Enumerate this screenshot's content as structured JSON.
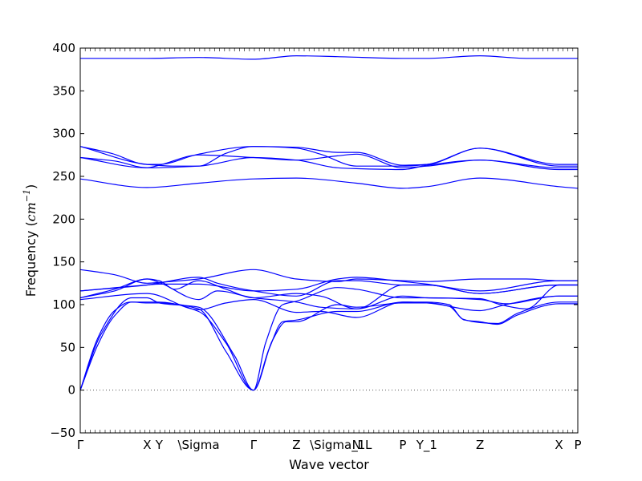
{
  "chart_data": {
    "type": "line",
    "title": "",
    "xlabel": "Wave vector",
    "ylabel_main": "Frequency (",
    "ylabel_unit": "cm",
    "ylabel_exp": "−1",
    "ylabel_close": ")",
    "ylim": [
      -50,
      400
    ],
    "yticks": [
      -50,
      0,
      50,
      100,
      150,
      200,
      250,
      300,
      350,
      400
    ],
    "xlim": [
      0,
      2.9
    ],
    "grid": false,
    "line_color": "#0000ff",
    "zero_line_color": "#555555",
    "xticks": [
      {
        "pos": 0.0,
        "label": "Γ"
      },
      {
        "pos": 0.39,
        "label": "X"
      },
      {
        "pos": 0.46,
        "label": "Y"
      },
      {
        "pos": 0.69,
        "label": "\\Sigma"
      },
      {
        "pos": 1.01,
        "label": "Γ"
      },
      {
        "pos": 1.26,
        "label": "Z"
      },
      {
        "pos": 1.5,
        "label": "\\Sigma_1"
      },
      {
        "pos": 1.61,
        "label": "N"
      },
      {
        "pos": 1.68,
        "label": "L"
      },
      {
        "pos": 1.88,
        "label": "P"
      },
      {
        "pos": 2.02,
        "label": "Y_1"
      },
      {
        "pos": 2.33,
        "label": "Z"
      },
      {
        "pos": 2.79,
        "label": "X"
      },
      {
        "pos": 2.9,
        "label": "P"
      }
    ],
    "series": [
      {
        "values": [
          [
            0,
            388
          ],
          [
            0.39,
            388
          ],
          [
            0.69,
            389
          ],
          [
            1.01,
            387
          ],
          [
            1.26,
            391
          ],
          [
            1.5,
            390
          ],
          [
            1.88,
            388
          ],
          [
            2.02,
            388
          ],
          [
            2.33,
            391
          ],
          [
            2.6,
            388
          ],
          [
            2.9,
            388
          ]
        ]
      },
      {
        "values": [
          [
            0,
            285
          ],
          [
            0.18,
            277
          ],
          [
            0.39,
            264
          ],
          [
            0.46,
            264
          ],
          [
            0.69,
            276
          ],
          [
            1.01,
            285
          ],
          [
            1.26,
            284
          ],
          [
            1.5,
            278
          ],
          [
            1.61,
            278
          ],
          [
            1.88,
            263
          ],
          [
            2.02,
            264
          ],
          [
            2.33,
            283
          ],
          [
            2.79,
            264
          ],
          [
            2.9,
            264
          ]
        ]
      },
      {
        "values": [
          [
            0,
            285
          ],
          [
            0.39,
            264
          ],
          [
            0.55,
            262
          ],
          [
            0.69,
            262
          ],
          [
            0.85,
            277
          ],
          [
            1.01,
            285
          ],
          [
            1.26,
            283
          ],
          [
            1.4,
            276
          ],
          [
            1.61,
            262
          ],
          [
            1.88,
            262
          ],
          [
            2.02,
            264
          ],
          [
            2.33,
            283
          ],
          [
            2.79,
            262
          ],
          [
            2.9,
            262
          ]
        ]
      },
      {
        "values": [
          [
            0,
            272
          ],
          [
            0.2,
            268
          ],
          [
            0.39,
            260
          ],
          [
            0.46,
            263
          ],
          [
            0.69,
            275
          ],
          [
            1.01,
            272
          ],
          [
            1.26,
            269
          ],
          [
            1.5,
            274
          ],
          [
            1.61,
            276
          ],
          [
            1.88,
            260
          ],
          [
            2.02,
            262
          ],
          [
            2.33,
            269
          ],
          [
            2.79,
            260
          ],
          [
            2.9,
            260
          ]
        ]
      },
      {
        "values": [
          [
            0,
            272
          ],
          [
            0.39,
            260
          ],
          [
            0.69,
            262
          ],
          [
            1.01,
            272
          ],
          [
            1.26,
            269
          ],
          [
            1.5,
            260
          ],
          [
            1.61,
            259
          ],
          [
            1.88,
            258
          ],
          [
            2.02,
            263
          ],
          [
            2.33,
            269
          ],
          [
            2.79,
            258
          ],
          [
            2.9,
            258
          ]
        ]
      },
      {
        "values": [
          [
            0,
            247
          ],
          [
            0.39,
            237
          ],
          [
            0.69,
            242
          ],
          [
            1.01,
            247
          ],
          [
            1.26,
            248
          ],
          [
            1.61,
            242
          ],
          [
            1.88,
            236
          ],
          [
            2.02,
            238
          ],
          [
            2.33,
            248
          ],
          [
            2.79,
            238
          ],
          [
            2.9,
            236
          ]
        ]
      },
      {
        "values": [
          [
            0,
            141
          ],
          [
            0.2,
            135
          ],
          [
            0.39,
            125
          ],
          [
            0.46,
            126
          ],
          [
            0.69,
            130
          ],
          [
            1.01,
            141
          ],
          [
            1.26,
            130
          ],
          [
            1.5,
            127
          ],
          [
            1.61,
            130
          ],
          [
            1.88,
            128
          ],
          [
            2.02,
            127
          ],
          [
            2.33,
            130
          ],
          [
            2.6,
            130
          ],
          [
            2.79,
            128
          ],
          [
            2.9,
            128
          ]
        ]
      },
      {
        "values": [
          [
            0,
            116
          ],
          [
            0.39,
            123
          ],
          [
            0.46,
            124
          ],
          [
            0.69,
            124
          ],
          [
            1.01,
            116
          ],
          [
            1.26,
            118
          ],
          [
            1.5,
            130
          ],
          [
            1.61,
            132
          ],
          [
            1.88,
            127
          ],
          [
            2.02,
            124
          ],
          [
            2.33,
            116
          ],
          [
            2.79,
            128
          ],
          [
            2.9,
            128
          ]
        ]
      },
      {
        "values": [
          [
            0,
            116
          ],
          [
            0.39,
            123
          ],
          [
            0.69,
            132
          ],
          [
            0.8,
            125
          ],
          [
            1.01,
            116
          ],
          [
            1.26,
            110
          ],
          [
            1.5,
            128
          ],
          [
            1.61,
            128
          ],
          [
            1.88,
            123
          ],
          [
            2.02,
            123
          ],
          [
            2.33,
            113
          ],
          [
            2.79,
            123
          ],
          [
            2.9,
            123
          ]
        ]
      },
      {
        "values": [
          [
            0,
            108
          ],
          [
            0.2,
            118
          ],
          [
            0.39,
            130
          ],
          [
            0.46,
            128
          ],
          [
            0.55,
            118
          ],
          [
            0.69,
            128
          ],
          [
            0.85,
            118
          ],
          [
            1.01,
            108
          ],
          [
            1.26,
            113
          ],
          [
            1.4,
            110
          ],
          [
            1.61,
            95
          ],
          [
            1.88,
            123
          ],
          [
            2.02,
            123
          ],
          [
            2.33,
            113
          ],
          [
            2.79,
            123
          ],
          [
            2.9,
            123
          ]
        ]
      },
      {
        "values": [
          [
            0,
            108
          ],
          [
            0.2,
            116
          ],
          [
            0.39,
            130
          ],
          [
            0.46,
            126
          ],
          [
            0.69,
            106
          ],
          [
            0.8,
            116
          ],
          [
            1.01,
            108
          ],
          [
            1.26,
            103
          ],
          [
            1.4,
            97
          ],
          [
            1.61,
            95
          ],
          [
            1.88,
            110
          ],
          [
            2.02,
            108
          ],
          [
            2.33,
            107
          ],
          [
            2.45,
            100
          ],
          [
            2.6,
            95
          ],
          [
            2.79,
            123
          ],
          [
            2.9,
            123
          ]
        ]
      },
      {
        "values": [
          [
            0,
            106
          ],
          [
            0.39,
            113
          ],
          [
            0.69,
            94
          ],
          [
            0.85,
            102
          ],
          [
            1.01,
            106
          ],
          [
            1.26,
            91
          ],
          [
            1.4,
            92
          ],
          [
            1.61,
            85
          ],
          [
            1.88,
            103
          ],
          [
            2.02,
            102
          ],
          [
            2.33,
            93
          ],
          [
            2.48,
            100
          ],
          [
            2.79,
            110
          ],
          [
            2.9,
            110
          ]
        ]
      },
      {
        "values": [
          [
            0,
            0
          ],
          [
            0.1,
            60
          ],
          [
            0.2,
            93
          ],
          [
            0.29,
            103
          ],
          [
            0.39,
            103
          ],
          [
            0.46,
            103
          ],
          [
            0.69,
            92
          ],
          [
            0.85,
            55
          ],
          [
            1.01,
            0
          ],
          [
            1.1,
            48
          ],
          [
            1.18,
            80
          ],
          [
            1.26,
            82
          ],
          [
            1.5,
            92
          ],
          [
            1.61,
            92
          ],
          [
            1.88,
            103
          ],
          [
            2.02,
            103
          ],
          [
            2.15,
            100
          ],
          [
            2.23,
            83
          ],
          [
            2.33,
            79
          ],
          [
            2.43,
            78
          ],
          [
            2.55,
            90
          ],
          [
            2.79,
            103
          ],
          [
            2.9,
            103
          ]
        ]
      },
      {
        "values": [
          [
            0,
            0
          ],
          [
            0.1,
            52
          ],
          [
            0.2,
            87
          ],
          [
            0.3,
            103
          ],
          [
            0.39,
            102
          ],
          [
            0.46,
            102
          ],
          [
            0.69,
            95
          ],
          [
            0.85,
            45
          ],
          [
            1.01,
            0
          ],
          [
            1.12,
            58
          ],
          [
            1.2,
            80
          ],
          [
            1.26,
            80
          ],
          [
            1.5,
            100
          ],
          [
            1.61,
            97
          ],
          [
            1.88,
            102
          ],
          [
            2.02,
            102
          ],
          [
            2.15,
            98
          ],
          [
            2.24,
            82
          ],
          [
            2.33,
            80
          ],
          [
            2.43,
            77
          ],
          [
            2.55,
            88
          ],
          [
            2.79,
            101
          ],
          [
            2.9,
            101
          ]
        ]
      },
      {
        "values": [
          [
            0,
            0
          ],
          [
            0.12,
            65
          ],
          [
            0.3,
            108
          ],
          [
            0.39,
            108
          ],
          [
            0.46,
            102
          ],
          [
            0.69,
            97
          ],
          [
            0.9,
            40
          ],
          [
            1.01,
            0
          ],
          [
            1.08,
            55
          ],
          [
            1.18,
            100
          ],
          [
            1.26,
            104
          ],
          [
            1.5,
            120
          ],
          [
            1.61,
            118
          ],
          [
            1.88,
            108
          ],
          [
            2.02,
            108
          ],
          [
            2.33,
            106
          ],
          [
            2.48,
            101
          ],
          [
            2.79,
            110
          ],
          [
            2.9,
            110
          ]
        ]
      }
    ]
  }
}
